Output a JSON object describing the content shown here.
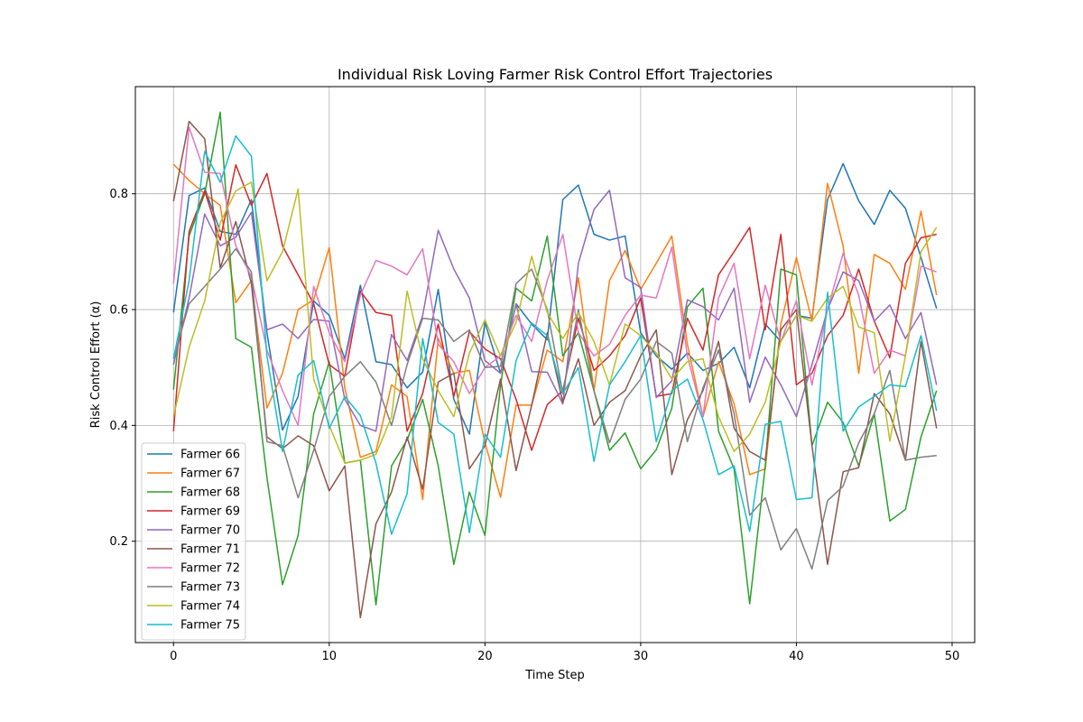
{
  "chart_data": {
    "type": "line",
    "title": "Individual Risk Loving Farmer Risk Control Effort Trajectories",
    "xlabel": "Time Step",
    "ylabel": "Risk Control Effort (α)",
    "xlim": [
      -2.45,
      51.45
    ],
    "ylim": [
      0.025,
      0.985
    ],
    "xticks": [
      0,
      10,
      20,
      30,
      40,
      50
    ],
    "yticks": [
      0.2,
      0.4,
      0.6,
      0.8
    ],
    "xtick_labels": [
      "0",
      "10",
      "20",
      "30",
      "40",
      "50"
    ],
    "ytick_labels": [
      "0.2",
      "0.4",
      "0.6",
      "0.8"
    ],
    "grid": true,
    "legend_position": "lower-left",
    "x": [
      0,
      1,
      2,
      3,
      4,
      5,
      6,
      7,
      8,
      9,
      10,
      11,
      12,
      13,
      14,
      15,
      16,
      17,
      18,
      19,
      20,
      21,
      22,
      23,
      24,
      25,
      26,
      27,
      28,
      29,
      30,
      31,
      32,
      33,
      34,
      35,
      36,
      37,
      38,
      39,
      40,
      41,
      42,
      43,
      44,
      45,
      46,
      47,
      48,
      49
    ],
    "series": [
      {
        "name": "Farmer 66",
        "color": "#1f77b4",
        "values": [
          0.595,
          0.797,
          0.81,
          0.735,
          0.73,
          0.79,
          0.56,
          0.392,
          0.45,
          0.615,
          0.59,
          0.515,
          0.642,
          0.51,
          0.505,
          0.465,
          0.492,
          0.635,
          0.445,
          0.385,
          0.578,
          0.49,
          0.61,
          0.575,
          0.548,
          0.79,
          0.815,
          0.73,
          0.72,
          0.727,
          0.56,
          0.52,
          0.497,
          0.525,
          0.495,
          0.507,
          0.535,
          0.465,
          0.575,
          0.545,
          0.59,
          0.585,
          0.79,
          0.852,
          0.788,
          0.747,
          0.806,
          0.775,
          0.69,
          0.602
        ]
      },
      {
        "name": "Farmer 67",
        "color": "#ff7f0e",
        "values": [
          0.851,
          0.823,
          0.8,
          0.78,
          0.612,
          0.65,
          0.43,
          0.49,
          0.6,
          0.617,
          0.707,
          0.465,
          0.345,
          0.355,
          0.47,
          0.45,
          0.272,
          0.55,
          0.49,
          0.495,
          0.37,
          0.276,
          0.435,
          0.435,
          0.53,
          0.51,
          0.655,
          0.46,
          0.65,
          0.702,
          0.635,
          0.68,
          0.727,
          0.54,
          0.415,
          0.51,
          0.437,
          0.315,
          0.325,
          0.575,
          0.69,
          0.58,
          0.818,
          0.71,
          0.49,
          0.695,
          0.68,
          0.635,
          0.77,
          0.625
        ]
      },
      {
        "name": "Farmer 68",
        "color": "#2ca02c",
        "values": [
          0.462,
          0.727,
          0.8,
          0.941,
          0.55,
          0.535,
          0.31,
          0.125,
          0.21,
          0.42,
          0.51,
          0.335,
          0.34,
          0.09,
          0.33,
          0.375,
          0.445,
          0.33,
          0.16,
          0.285,
          0.21,
          0.47,
          0.637,
          0.615,
          0.727,
          0.52,
          0.56,
          0.46,
          0.357,
          0.387,
          0.325,
          0.358,
          0.43,
          0.605,
          0.637,
          0.39,
          0.325,
          0.092,
          0.33,
          0.67,
          0.66,
          0.365,
          0.44,
          0.405,
          0.33,
          0.42,
          0.235,
          0.255,
          0.38,
          0.46
        ]
      },
      {
        "name": "Farmer 69",
        "color": "#d62728",
        "values": [
          0.39,
          0.735,
          0.805,
          0.72,
          0.85,
          0.78,
          0.835,
          0.71,
          0.66,
          0.61,
          0.505,
          0.485,
          0.632,
          0.595,
          0.59,
          0.39,
          0.455,
          0.575,
          0.45,
          0.562,
          0.532,
          0.515,
          0.445,
          0.357,
          0.436,
          0.46,
          0.585,
          0.495,
          0.52,
          0.555,
          0.62,
          0.45,
          0.455,
          0.585,
          0.53,
          0.66,
          0.7,
          0.742,
          0.565,
          0.73,
          0.47,
          0.49,
          0.555,
          0.59,
          0.67,
          0.58,
          0.517,
          0.68,
          0.724,
          0.73
        ]
      },
      {
        "name": "Farmer 70",
        "color": "#9467bd",
        "values": [
          0.505,
          0.62,
          0.765,
          0.71,
          0.725,
          0.768,
          0.565,
          0.575,
          0.55,
          0.583,
          0.58,
          0.445,
          0.4,
          0.39,
          0.557,
          0.512,
          0.59,
          0.737,
          0.67,
          0.62,
          0.512,
          0.49,
          0.61,
          0.493,
          0.492,
          0.437,
          0.68,
          0.773,
          0.806,
          0.655,
          0.638,
          0.448,
          0.477,
          0.617,
          0.605,
          0.582,
          0.637,
          0.44,
          0.518,
          0.47,
          0.415,
          0.505,
          0.6,
          0.665,
          0.65,
          0.58,
          0.608,
          0.55,
          0.595,
          0.47
        ]
      },
      {
        "name": "Farmer 71",
        "color": "#8c564b",
        "values": [
          0.787,
          0.925,
          0.895,
          0.672,
          0.752,
          0.645,
          0.38,
          0.36,
          0.382,
          0.365,
          0.287,
          0.33,
          0.068,
          0.23,
          0.285,
          0.38,
          0.29,
          0.475,
          0.49,
          0.325,
          0.365,
          0.48,
          0.322,
          0.435,
          0.56,
          0.44,
          0.515,
          0.4,
          0.44,
          0.46,
          0.52,
          0.565,
          0.315,
          0.41,
          0.46,
          0.545,
          0.395,
          0.355,
          0.34,
          0.565,
          0.6,
          0.365,
          0.16,
          0.32,
          0.327,
          0.455,
          0.42,
          0.34,
          0.545,
          0.395
        ]
      },
      {
        "name": "Farmer 72",
        "color": "#e377c2",
        "values": [
          0.645,
          0.915,
          0.837,
          0.835,
          0.71,
          0.657,
          0.53,
          0.46,
          0.4,
          0.64,
          0.56,
          0.51,
          0.625,
          0.685,
          0.675,
          0.66,
          0.705,
          0.54,
          0.51,
          0.455,
          0.5,
          0.52,
          0.59,
          0.545,
          0.65,
          0.73,
          0.56,
          0.52,
          0.54,
          0.59,
          0.625,
          0.62,
          0.708,
          0.52,
          0.415,
          0.62,
          0.68,
          0.515,
          0.642,
          0.545,
          0.615,
          0.47,
          0.6,
          0.697,
          0.625,
          0.49,
          0.53,
          0.52,
          0.675,
          0.665
        ]
      },
      {
        "name": "Farmer 73",
        "color": "#7f7f7f",
        "values": [
          0.515,
          0.61,
          0.64,
          0.67,
          0.705,
          0.665,
          0.372,
          0.365,
          0.275,
          0.357,
          0.45,
          0.485,
          0.51,
          0.475,
          0.4,
          0.505,
          0.585,
          0.582,
          0.545,
          0.565,
          0.5,
          0.502,
          0.645,
          0.67,
          0.6,
          0.455,
          0.6,
          0.46,
          0.37,
          0.445,
          0.48,
          0.545,
          0.525,
          0.372,
          0.465,
          0.53,
          0.42,
          0.245,
          0.275,
          0.185,
          0.222,
          0.152,
          0.27,
          0.295,
          0.37,
          0.42,
          0.495,
          0.34,
          0.345,
          0.348
        ]
      },
      {
        "name": "Farmer 74",
        "color": "#bcbd22",
        "values": [
          0.415,
          0.535,
          0.615,
          0.75,
          0.805,
          0.82,
          0.65,
          0.7,
          0.808,
          0.48,
          0.4,
          0.335,
          0.34,
          0.35,
          0.415,
          0.632,
          0.515,
          0.46,
          0.415,
          0.525,
          0.582,
          0.52,
          0.578,
          0.692,
          0.595,
          0.55,
          0.595,
          0.545,
          0.47,
          0.575,
          0.555,
          0.525,
          0.48,
          0.51,
          0.515,
          0.415,
          0.355,
          0.385,
          0.44,
          0.545,
          0.59,
          0.58,
          0.62,
          0.64,
          0.57,
          0.56,
          0.373,
          0.52,
          0.7,
          0.742
        ]
      },
      {
        "name": "Farmer 75",
        "color": "#17becf",
        "values": [
          0.515,
          0.65,
          0.873,
          0.82,
          0.9,
          0.865,
          0.52,
          0.355,
          0.487,
          0.512,
          0.395,
          0.45,
          0.417,
          0.335,
          0.212,
          0.282,
          0.55,
          0.405,
          0.385,
          0.215,
          0.385,
          0.345,
          0.512,
          0.577,
          0.555,
          0.455,
          0.5,
          0.338,
          0.47,
          0.51,
          0.555,
          0.372,
          0.46,
          0.48,
          0.41,
          0.315,
          0.33,
          0.217,
          0.402,
          0.407,
          0.272,
          0.275,
          0.63,
          0.39,
          0.432,
          0.45,
          0.47,
          0.467,
          0.555,
          0.425
        ]
      }
    ]
  }
}
